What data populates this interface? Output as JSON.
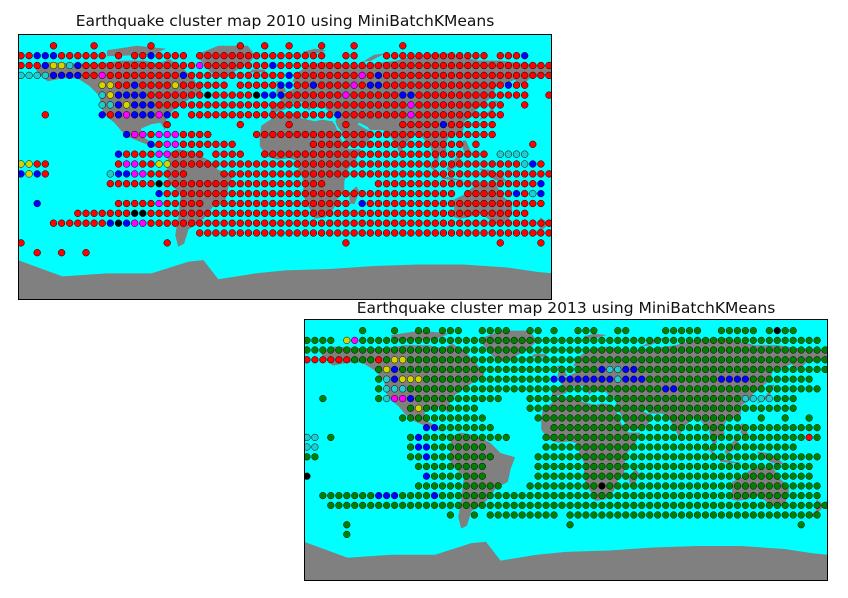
{
  "colors": {
    "ocean": "#00ffff",
    "land": "#808080",
    "red": "#ff0000",
    "blue": "#0000ff",
    "magenta": "#ff00ff",
    "yellow": "#d4d400",
    "cyan": "#22cccc",
    "green": "#008000",
    "black": "#000000"
  },
  "maps": [
    {
      "id": "2010",
      "title": "Earthquake cluster map 2010 using MiniBatchKMeans",
      "default_color": "red",
      "lead": "C0E0N0G0O0D0A",
      "rows": [
        "    R    R      R          R  R  R   R   R     R                 ",
        "RRBBBRRRRRR R RRBRRRR RRRRRRRRRRRRRRRR  RR   RRRRRRRRRRRRR RRRB  ",
        "RRRBYYCBRRRRRRRRRRRRRRMRRRRRRRRBRRRRRRRRRRRRRRRRRRRRRRRRRRRRRRRRRR",
        "CCCCBBBBRRMRRRRRRRRRBRRRRRRRRRRRRBRRRRRRRRMRBRRRRRRRRRRRRRRRRRRRRR",
        "          YYRRBRRRRYRRRRRR RRRRRBBRRBRRRRMRBBRRRRRRRRRRRRRRRBRR     ",
        "          CYBBBBRRRRRRRKRRRRRKBBBRRRRRRRMRRRRRRBBRRRRRRRRRRRRRR  R  ",
        "          CCBYBBBRRRRRRRRRRRRRRRRRRRRRRRRRRRRRRRMRRRRRRRRRRR  R   R",
        "   R      BRBMBBBMBR RRRRRRRRRRRRRRRRRRBRRRRRRRRMRRRRRRRRRRR      ",
        "                  R        R     R      R      RRRRRBRRRRRR      ",
        "             BMMRMMMRRRR     RRRRRRRRRRRRRRRRRRRRRRRRRRRRRR      ",
        "                BRMMRRRRRRR         RRRRRRRRRRRRRRRRRRR R      R ",
        "            BRRRRMMRRRR RRRR  RRRRRRRRRRRRRRRRRRRRRRRRRRRR CCCC ",
        "YYRR        RMMRRYYRRRRRRRRRRRRRRRRRRRRRRRRRRRRRRRRRRRRRRRRRRRCBR ",
        "BYBR       CBBMMRRRRR    RRRRRRRRRRRRRRRRRRRRRRRRRRRRRRRRRRRRRRRRR",
        "           RRRRRRKRRRRRRRRRRRRRRRRRRRR      RRRRRRRRRRRRRRRRRRRRB ",
        "                 BRRRRRRRRRRRRRRRRRRRRRRRRRRRRRRRRRRRR RRRRRRBRCB",
        "  B         RRRRRMRRRRR RRRRRRRRRRRRRRRRR BRRRRRRRRRRRRRRRRRRRRRR",
        "       RRRRRRRKKRRRRRRRRRRRRRRRRRRRRRRRRRRRRRRRRRRRRRRRRRRRRRRR  ",
        "    RRRRRRRBKBMMRRRRRRRRRRRRRRRRRRRRRRRRRRRRRRRRRRRRRRRRRRRRRRRRRR",
        "                      RRRRRRRRRRRRRRRRRRRRRRRRRRRRRRRRRRRRRRRRRRRR",
        "R                 R                     R                  R    R",
        "  R  R  R                                                         "
      ]
    },
    {
      "id": "2013",
      "title": "Earthquake cluster map 2013 using MiniBatchKMeans",
      "default_color": "green",
      "lead": "G0",
      "rows": [
        "       G   G  GG GGG  GGGG  GG G  GGG  GG    GGGGG  GGGGG GKGG   ",
        "GGGG YMGGGGGGGGGGGGGGGGGGGGGGGGGGGGGGGGGGGGGGGGGGGGGGGGGGGGGGGGGG",
        "GGGGGGGGGGGGGGGGGGGGGGGGGGGGGGGGGGGGGGGGGGGGGGGGGGGGGGGGGGGGGGGGGG",
        "RRRRRRGGGRGYYGGGGGGGGGGGGGGGGGGGGGGGGGGGGGGGGGGGGGGGGGGGGGGGGGGGGG",
        "         GYBGGGGGGGGGGGGGGGGGGGGGGGGGBCCBBGGGGGGGGGGGGGGGGGGGGGGGG ",
        "         GCBYYYGGGGGGGGGGGGGGGGBBBBBBBBCBBBGGGGGGGGGBBBBGGGGGGGG   ",
        "         GCCCGGGGGGGGGGGGGGGGGGGGGGGGGGGGGGGGBBGGGGGGGGGGGGGGGGGG  ",
        "  G      GCMMBGGGGGGGGGGG   GGGGGGGGGGGGGGGGGGGGGGGGGGGCCCCGGG     ",
        "             GYGGGGGGG      GGGGGGGGGGGGGGGGGGGGGGGGGGGGGGGGGG     ",
        "            GGGGGGGGGGG      GGGGGGGGGGGGGGGGGGGGGGGGGG  G  G  G  ",
        "               BBGGGGGGG       GGGGGGGGGGGGGGGGGGGGGGGGGGGGGGGGGG",
        "CC G         GBGGGGGGGGGGG    GGGGGGGGGGGGGGGGGGGGGGGGGGGGGGGGGRG",
        "CC           GBBGGGGGGG       GGGGGGGGGGGGGGGGGGGGGGGGGGGGGGGG   ",
        "GG           GGBGGGGGGGG     GGGGGGGGGGGGGGGGGGGGGGGGGGGGGGGGGGGG",
        "              GGGGGGGGG      GGGGGGGGGGGGGGGGGGGGGGGGGGGGGGGGGGG ",
        "K              BGGGGGGG      GGGGGGGGGGGGGGGGGGGGGGGGGGGGGGGGGGG ",
        "              GGGGGGGGGGG   GGGGGGGGGKGGGGGGGGGGGGGGGGGGGGGGGGGGG",
        "  GGGGGGGBBBGGGGBGGGGGGGGGGGGGGGGGGGGGGGGGGGGGGGGGGGGGGGGGGGGGGGG ",
        "   GGGGGGGGGGGGGGGGGGGGGGGGGGGGGGGGGGGGGGGGGGGGGGGGGGGGGGGGGGGGGGG",
        "                  G  G GGGGGGGGG GGGGGGGGGGGGGGGGGGGGGGGGGGGGGGGG",
        "     G                           G                            G ",
        "     G                                                          "
      ]
    }
  ]
}
